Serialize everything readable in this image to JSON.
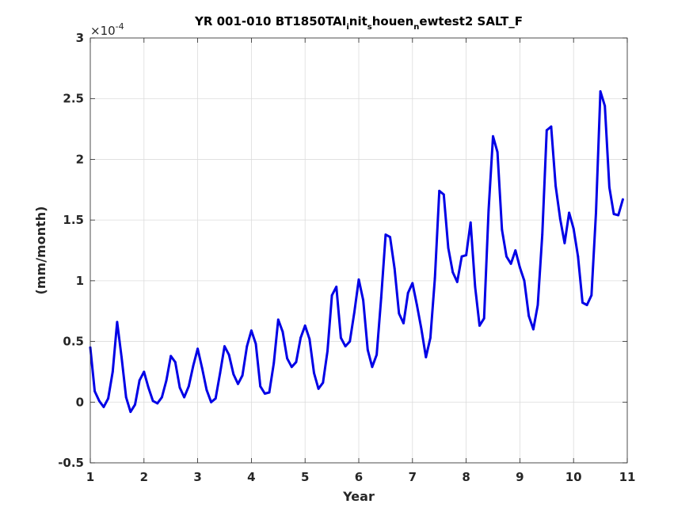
{
  "chart_data": {
    "type": "line",
    "title": {
      "prefix": "YR 001-010 BT1850TAI",
      "sub1": "i",
      "mid1": "nit",
      "sub2": "s",
      "mid2": "houen",
      "sub3": "n",
      "suffix": "ewtest2 SALT_F"
    },
    "xlabel": "Year",
    "ylabel": "(mm/month)",
    "y_exponent": {
      "base": "×10",
      "power": "-4"
    },
    "xlim": [
      1,
      11
    ],
    "ylim": [
      -0.5,
      3
    ],
    "xticks": [
      1,
      2,
      3,
      4,
      5,
      6,
      7,
      8,
      9,
      10,
      11
    ],
    "xtick_labels": [
      "1",
      "2",
      "3",
      "4",
      "5",
      "6",
      "7",
      "8",
      "9",
      "10",
      "11"
    ],
    "yticks": [
      -0.5,
      0,
      0.5,
      1,
      1.5,
      2,
      2.5,
      3
    ],
    "ytick_labels": [
      "-0.5",
      "0",
      "0.5",
      "1",
      "1.5",
      "2",
      "2.5",
      "3"
    ],
    "grid": true,
    "line_color": "#0000e6",
    "series": [
      {
        "x": [
          1.0,
          1.083,
          1.167,
          1.25,
          1.333,
          1.417,
          1.5,
          1.583,
          1.667,
          1.75,
          1.833,
          1.917,
          2.0,
          2.083,
          2.167,
          2.25,
          2.333,
          2.417,
          2.5,
          2.583,
          2.667,
          2.75,
          2.833,
          2.917,
          3.0,
          3.083,
          3.167,
          3.25,
          3.333,
          3.417,
          3.5,
          3.583,
          3.667,
          3.75,
          3.833,
          3.917,
          4.0,
          4.083,
          4.167,
          4.25,
          4.333,
          4.417,
          4.5,
          4.583,
          4.667,
          4.75,
          4.833,
          4.917,
          5.0,
          5.083,
          5.167,
          5.25,
          5.333,
          5.417,
          5.5,
          5.583,
          5.667,
          5.75,
          5.833,
          5.917,
          6.0,
          6.083,
          6.167,
          6.25,
          6.333,
          6.417,
          6.5,
          6.583,
          6.667,
          6.75,
          6.833,
          6.917,
          7.0,
          7.083,
          7.167,
          7.25,
          7.333,
          7.417,
          7.5,
          7.583,
          7.667,
          7.75,
          7.833,
          7.917,
          8.0,
          8.083,
          8.167,
          8.25,
          8.333,
          8.417,
          8.5,
          8.583,
          8.667,
          8.75,
          8.833,
          8.917,
          9.0,
          9.083,
          9.167,
          9.25,
          9.333,
          9.417,
          9.5,
          9.583,
          9.667,
          9.75,
          9.833,
          9.917,
          10.0,
          10.083,
          10.167,
          10.25,
          10.333,
          10.417,
          10.5,
          10.583,
          10.667,
          10.75,
          10.833,
          10.917
        ],
        "values": [
          0.45,
          0.09,
          0.01,
          -0.04,
          0.03,
          0.25,
          0.66,
          0.37,
          0.04,
          -0.08,
          -0.02,
          0.18,
          0.25,
          0.12,
          0.01,
          -0.01,
          0.04,
          0.18,
          0.38,
          0.33,
          0.12,
          0.04,
          0.13,
          0.3,
          0.44,
          0.28,
          0.1,
          0.0,
          0.03,
          0.24,
          0.46,
          0.39,
          0.23,
          0.15,
          0.22,
          0.46,
          0.59,
          0.48,
          0.13,
          0.07,
          0.08,
          0.32,
          0.68,
          0.58,
          0.36,
          0.29,
          0.33,
          0.53,
          0.63,
          0.52,
          0.24,
          0.11,
          0.16,
          0.42,
          0.88,
          0.95,
          0.53,
          0.46,
          0.5,
          0.74,
          1.01,
          0.84,
          0.43,
          0.29,
          0.39,
          0.86,
          1.38,
          1.36,
          1.1,
          0.73,
          0.65,
          0.9,
          0.98,
          0.8,
          0.6,
          0.37,
          0.53,
          1.02,
          1.74,
          1.71,
          1.27,
          1.07,
          0.99,
          1.2,
          1.21,
          1.48,
          0.95,
          0.63,
          0.69,
          1.58,
          2.19,
          2.06,
          1.42,
          1.2,
          1.14,
          1.25,
          1.11,
          1.0,
          0.71,
          0.6,
          0.8,
          1.38,
          2.24,
          2.27,
          1.78,
          1.51,
          1.31,
          1.56,
          1.43,
          1.2,
          0.82,
          0.8,
          0.88,
          1.56,
          2.56,
          2.44,
          1.77,
          1.55,
          1.54,
          1.67
        ]
      }
    ]
  }
}
